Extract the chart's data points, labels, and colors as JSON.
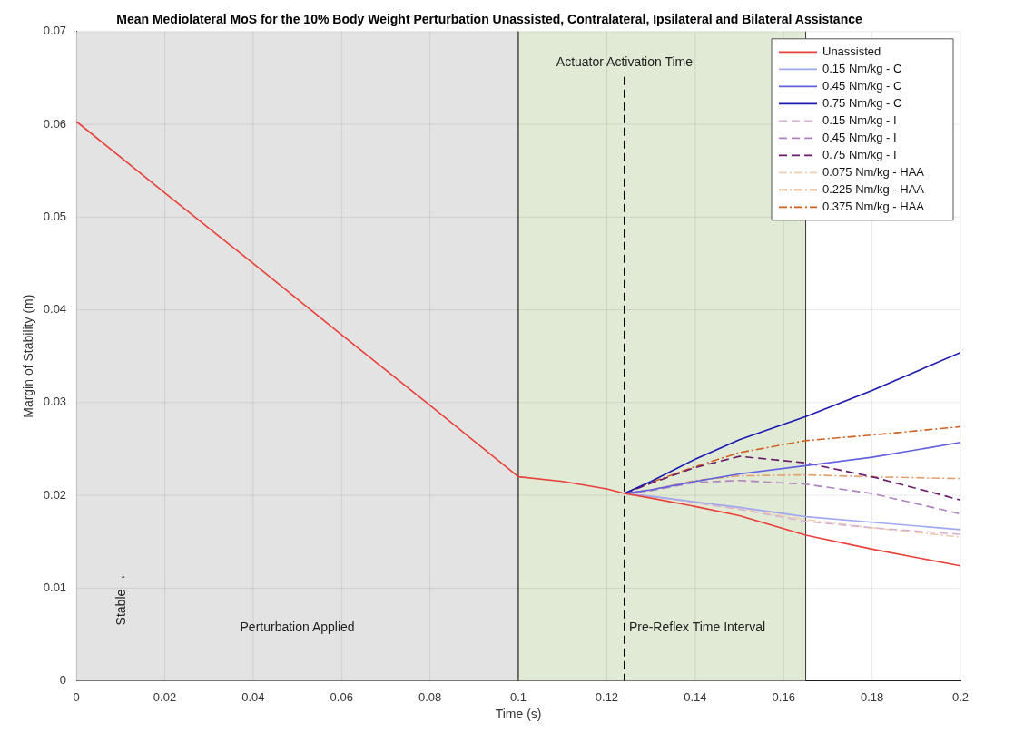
{
  "chart_data": {
    "type": "line",
    "title": "Mean Mediolateral MoS for the 10% Body Weight Perturbation Unassisted, Contralateral, Ipsilateral and Bilateral Assistance",
    "xlabel": "Time (s)",
    "ylabel": "Margin of Stability (m)",
    "x": [
      0,
      0.02,
      0.04,
      0.06,
      0.08,
      0.1,
      0.11,
      0.12,
      0.124,
      0.13,
      0.14,
      0.15,
      0.165,
      0.18,
      0.2
    ],
    "xlim": [
      0,
      0.2
    ],
    "xticks": [
      0,
      0.02,
      0.04,
      0.06,
      0.08,
      0.1,
      0.12,
      0.14,
      0.16,
      0.18,
      0.2
    ],
    "ylim": [
      0,
      0.07
    ],
    "yticks": [
      0,
      0.01,
      0.02,
      0.03,
      0.04,
      0.05,
      0.06,
      0.07
    ],
    "grid": true,
    "legend": "top right",
    "marker": "none",
    "series": [
      {
        "name": "Unassisted",
        "color": "#e8413a",
        "line_style": "solid",
        "values": [
          0.0603,
          0.0526,
          0.045,
          0.0373,
          0.0297,
          0.022,
          0.0215,
          0.0207,
          0.0202,
          0.0197,
          0.0188,
          0.0178,
          0.0157,
          0.0142,
          0.0124
        ]
      },
      {
        "name": "0.15 Nm/kg - C",
        "color": "#a0a8f0",
        "line_style": "solid",
        "values": [
          null,
          null,
          null,
          null,
          null,
          null,
          null,
          null,
          0.0202,
          0.0199,
          0.0193,
          0.0187,
          0.0177,
          0.0171,
          0.0163
        ]
      },
      {
        "name": "0.45 Nm/kg - C",
        "color": "#6060e0",
        "line_style": "solid",
        "values": [
          null,
          null,
          null,
          null,
          null,
          null,
          null,
          null,
          0.0202,
          0.0206,
          0.0215,
          0.0223,
          0.0232,
          0.0241,
          0.0257
        ]
      },
      {
        "name": "0.75 Nm/kg - C",
        "color": "#1a1ab0",
        "line_style": "solid",
        "values": [
          null,
          null,
          null,
          null,
          null,
          null,
          null,
          null,
          0.0202,
          0.0215,
          0.0239,
          0.026,
          0.0285,
          0.0313,
          0.0354
        ]
      },
      {
        "name": "0.15 Nm/kg - I",
        "color": "#d8b0d0",
        "line_style": "dashed",
        "values": [
          null,
          null,
          null,
          null,
          null,
          null,
          null,
          null,
          0.0202,
          0.0199,
          0.0192,
          0.0185,
          0.0172,
          0.0165,
          0.0158
        ]
      },
      {
        "name": "0.45 Nm/kg - I",
        "color": "#b080c0",
        "line_style": "dashed",
        "values": [
          null,
          null,
          null,
          null,
          null,
          null,
          null,
          null,
          0.0202,
          0.0205,
          0.0214,
          0.0216,
          0.0212,
          0.0202,
          0.018
        ]
      },
      {
        "name": "0.75 Nm/kg - I",
        "color": "#6a1a6a",
        "line_style": "dashed",
        "values": [
          null,
          null,
          null,
          null,
          null,
          null,
          null,
          null,
          0.0202,
          0.0213,
          0.023,
          0.0242,
          0.0235,
          0.022,
          0.0195
        ]
      },
      {
        "name": "0.075 Nm/kg - HAA",
        "color": "#f0d0b0",
        "line_style": "dashdot",
        "values": [
          null,
          null,
          null,
          null,
          null,
          null,
          null,
          null,
          0.0202,
          0.0199,
          0.0192,
          0.0186,
          0.0174,
          0.0165,
          0.0155
        ]
      },
      {
        "name": "0.225 Nm/kg - HAA",
        "color": "#e0a070",
        "line_style": "dashdot",
        "values": [
          null,
          null,
          null,
          null,
          null,
          null,
          null,
          null,
          0.0202,
          0.0206,
          0.0216,
          0.0221,
          0.0222,
          0.022,
          0.0218
        ]
      },
      {
        "name": "0.375 Nm/kg - HAA",
        "color": "#d06020",
        "line_style": "dashdot",
        "values": [
          null,
          null,
          null,
          null,
          null,
          null,
          null,
          null,
          0.0202,
          0.0214,
          0.0231,
          0.0246,
          0.0259,
          0.0265,
          0.0274
        ]
      }
    ],
    "bands": [
      {
        "axis": "x",
        "from": 0,
        "to": 0.1,
        "label": "Perturbation Applied",
        "color": "#e3e3e3"
      },
      {
        "axis": "x",
        "from": 0.1,
        "to": 0.165,
        "label": "Pre-Reflex Time Interval",
        "color": "#e0ead5"
      }
    ],
    "ref_lines": [
      {
        "axis": "x",
        "value": 0.124,
        "label": "Actuator Activation Time",
        "color": "#000000",
        "line_style": "dashed"
      }
    ],
    "annotations": [
      "Stable →"
    ]
  }
}
